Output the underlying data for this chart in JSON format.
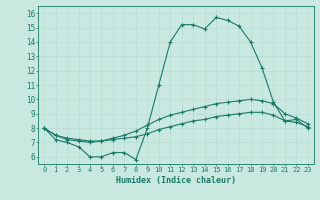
{
  "xlabel": "Humidex (Indice chaleur)",
  "background_color": "#c8e8e0",
  "grid_color": "#b8dcd4",
  "line_color": "#1a7a6a",
  "xlim": [
    -0.5,
    23.5
  ],
  "ylim": [
    5.5,
    16.5
  ],
  "xticks": [
    0,
    1,
    2,
    3,
    4,
    5,
    6,
    7,
    8,
    9,
    10,
    11,
    12,
    13,
    14,
    15,
    16,
    17,
    18,
    19,
    20,
    21,
    22,
    23
  ],
  "yticks": [
    6,
    7,
    8,
    9,
    10,
    11,
    12,
    13,
    14,
    15,
    16
  ],
  "series_max": [
    8.0,
    7.2,
    7.0,
    6.7,
    6.0,
    6.0,
    6.3,
    6.3,
    5.8,
    8.0,
    11.0,
    14.0,
    15.2,
    15.2,
    14.9,
    15.7,
    15.5,
    15.1,
    14.0,
    12.2,
    9.8,
    8.5,
    8.6,
    8.0
  ],
  "series_mean": [
    8.0,
    7.5,
    7.2,
    7.1,
    7.0,
    7.1,
    7.3,
    7.5,
    7.8,
    8.2,
    8.6,
    8.9,
    9.1,
    9.3,
    9.5,
    9.7,
    9.8,
    9.9,
    10.0,
    9.9,
    9.7,
    9.0,
    8.7,
    8.3
  ],
  "series_min": [
    8.0,
    7.5,
    7.3,
    7.2,
    7.1,
    7.1,
    7.2,
    7.3,
    7.4,
    7.6,
    7.9,
    8.1,
    8.3,
    8.5,
    8.6,
    8.8,
    8.9,
    9.0,
    9.1,
    9.1,
    8.9,
    8.5,
    8.4,
    8.1
  ]
}
